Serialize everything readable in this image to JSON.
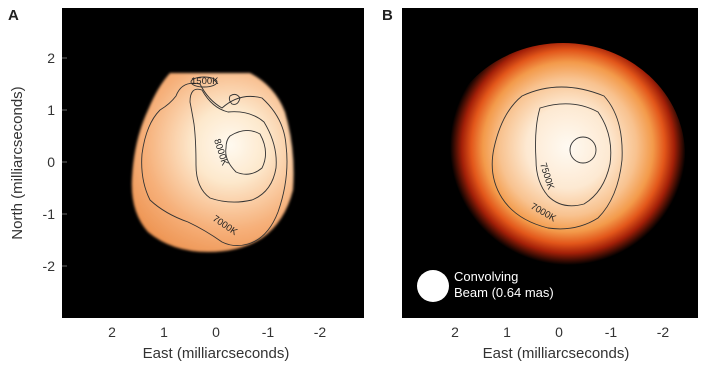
{
  "panels": [
    {
      "letter": "A",
      "contour_labels": [
        "1500K",
        "8000K",
        "7000K"
      ]
    },
    {
      "letter": "B",
      "contour_labels": [
        "7500K",
        "7000K"
      ],
      "beam_legend": [
        "Convolving",
        "Beam (0.64 mas)"
      ]
    }
  ],
  "x_axis": {
    "label": "East (milliarcseconds)",
    "ticks": [
      "2",
      "1",
      "0",
      "-1",
      "-2"
    ]
  },
  "y_axis": {
    "label": "North (milliarcseconds)",
    "ticks": [
      "2",
      "1",
      "0",
      "-1",
      "-2"
    ]
  },
  "colors": {
    "background": "#000000",
    "disk_outer": "#e06a1a",
    "disk_inner": "#fff6e8",
    "contour": "#333333"
  }
}
